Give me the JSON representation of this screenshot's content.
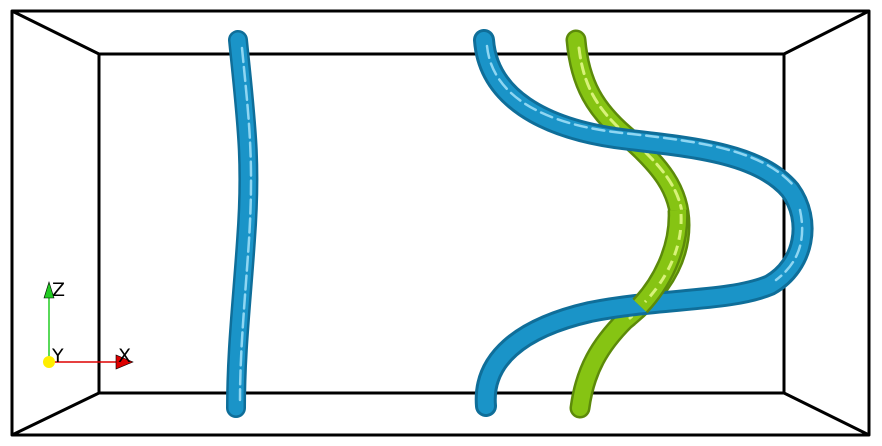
{
  "scene": {
    "background": "#ffffff",
    "box_color": "#000000",
    "tube_colors": {
      "blue": "#1a94c8",
      "blue_dark": "#0f6e99",
      "blue_light": "#8fd6f2",
      "green": "#86c413",
      "green_dark": "#5c8a0a",
      "green_light": "#d8f27a"
    }
  },
  "axes": {
    "z_label": "Z",
    "y_label": "Y",
    "x_label": "X",
    "z_color": "#22cc22",
    "y_color": "#ffee00",
    "x_color": "#dd0000"
  }
}
